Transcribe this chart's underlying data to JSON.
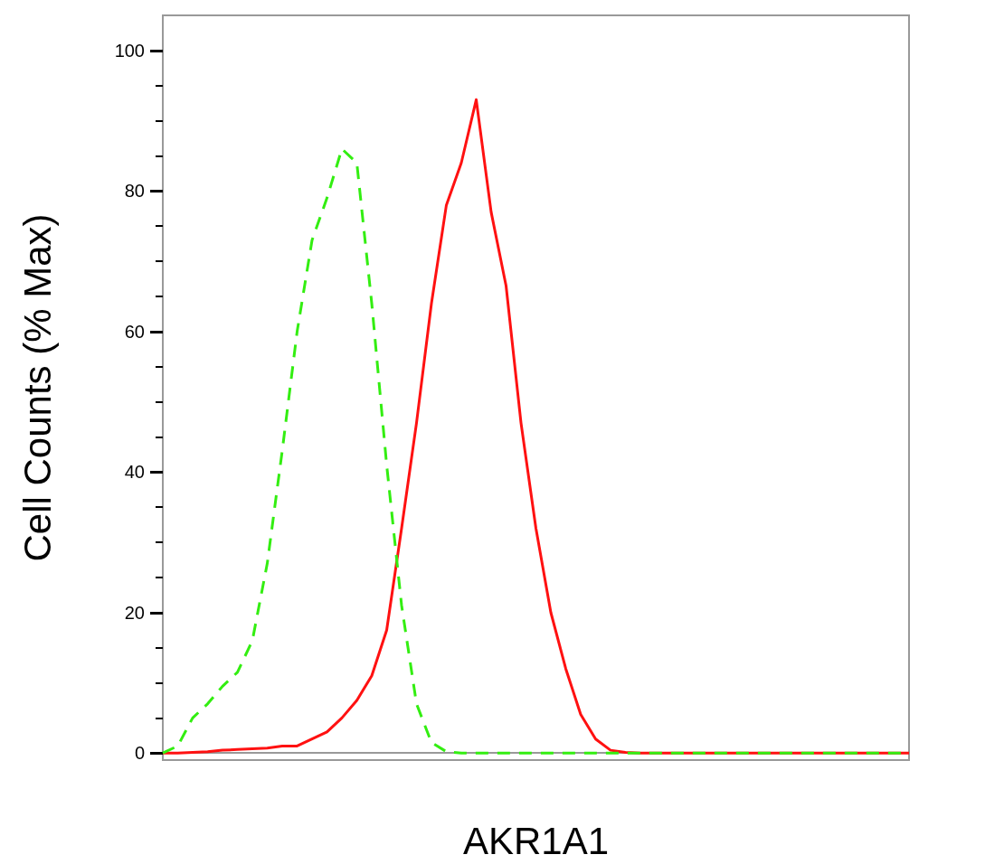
{
  "chart_data": {
    "type": "line",
    "xlabel": "AKR1A1",
    "ylabel": "Cell Counts (% Max)",
    "categories": [
      null,
      null,
      null,
      null,
      null,
      null,
      null,
      null,
      null,
      null,
      null,
      null,
      null,
      null,
      null,
      null,
      null,
      null,
      null,
      null,
      null,
      null,
      null,
      null,
      null,
      null,
      null,
      null,
      null,
      null,
      null,
      null,
      null,
      null,
      null,
      null,
      null,
      null,
      null,
      null,
      null,
      null,
      null,
      null,
      null,
      null,
      null,
      null,
      null,
      null,
      null
    ],
    "series": [
      {
        "color": "#33ee11",
        "line_style": "dashed",
        "values": [
          0,
          1,
          5,
          7,
          9.5,
          11.5,
          16,
          27,
          43,
          60,
          73,
          79,
          86,
          84,
          64,
          41,
          21,
          7,
          1.5,
          0.2,
          0,
          0,
          0,
          0,
          0,
          0,
          0,
          0,
          0,
          0,
          0,
          0,
          0,
          0,
          0,
          0,
          0,
          0,
          0,
          0,
          0,
          0,
          0,
          0,
          0,
          0,
          0,
          0,
          0,
          0,
          0
        ]
      },
      {
        "color": "#ff1111",
        "line_style": "solid",
        "values": [
          0,
          0,
          0.1,
          0.2,
          0.4,
          0.5,
          0.6,
          0.7,
          1,
          1,
          2,
          3,
          5,
          7.5,
          11,
          17.5,
          32,
          47,
          64,
          78,
          84,
          93,
          77,
          66.5,
          47,
          32,
          20,
          12,
          5.5,
          2,
          0.4,
          0.1,
          0,
          0,
          0,
          0,
          0,
          0,
          0,
          0,
          0,
          0,
          0,
          0,
          0,
          0,
          0,
          0,
          0,
          0,
          0
        ]
      }
    ],
    "ylim": [
      -1,
      105
    ],
    "yticks": [
      0,
      20,
      40,
      60,
      80,
      100
    ],
    "marker": "none",
    "tick_labels": "y"
  }
}
